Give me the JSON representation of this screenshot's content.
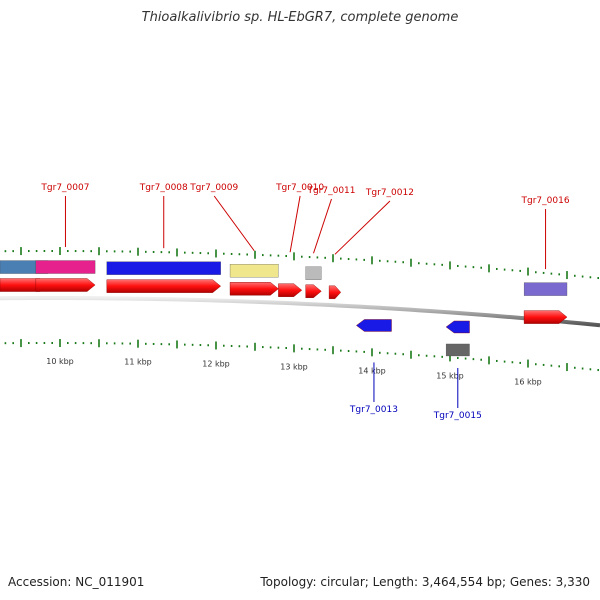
{
  "title": "Thioalkalivibrio sp. HL-EbGR7, complete genome",
  "footer": {
    "accession": "Accession: NC_011901",
    "summary": "Topology: circular; Length: 3,464,554 bp; Genes: 3,330"
  },
  "scale": {
    "unit": "kbp",
    "labels": [
      "10 kbp",
      "11 kbp",
      "12 kbp",
      "13 kbp",
      "14 kbp",
      "15 kbp",
      "16 kbp"
    ],
    "major_positions_kbp": [
      9.5,
      10,
      10.5,
      11,
      11.5,
      12,
      12.5,
      13,
      13.5,
      14,
      14.5,
      15,
      15.5,
      16,
      16.5
    ]
  },
  "genes_forward": [
    {
      "id": "Tgr7_0007",
      "start_kbp": 9.69,
      "end_kbp": 10.45,
      "label_color": "#cc0000"
    },
    {
      "id": "Tgr7_0008",
      "start_kbp": 10.6,
      "end_kbp": 12.06,
      "label_color": "#cc0000"
    },
    {
      "id": "Tgr7_0009",
      "start_kbp": 12.18,
      "end_kbp": 12.8,
      "label_color": "#cc0000"
    },
    {
      "id": "Tgr7_0010",
      "start_kbp": 12.8,
      "end_kbp": 13.1,
      "label_color": "#cc0000"
    },
    {
      "id": "Tgr7_0011",
      "start_kbp": 13.15,
      "end_kbp": 13.35,
      "label_color": "#cc0000"
    },
    {
      "id": "Tgr7_0012",
      "start_kbp": 13.45,
      "end_kbp": 13.6,
      "label_color": "#cc0000"
    },
    {
      "id": "Tgr7_0016",
      "start_kbp": 15.95,
      "end_kbp": 16.5,
      "label_color": "#cc0000"
    }
  ],
  "genes_reverse": [
    {
      "id": "Tgr7_0013",
      "start_kbp": 13.8,
      "end_kbp": 14.25,
      "label_color": "#0000bb"
    },
    {
      "id": "Tgr7_0015",
      "start_kbp": 14.95,
      "end_kbp": 15.25,
      "label_color": "#0000bb"
    }
  ],
  "colors": {
    "cds": "#ff1a1a",
    "backbone": "#888888",
    "tick": "#1a7a1a",
    "cog_blue": "#1a1ae6",
    "cog_pink": "#e6208c",
    "cog_steel": "#4a7fb3",
    "cog_yellow": "#f0e68c",
    "cog_grey": "#bbbbbb",
    "cog_dark": "#666666",
    "cog_violet": "#7a6ad0"
  }
}
